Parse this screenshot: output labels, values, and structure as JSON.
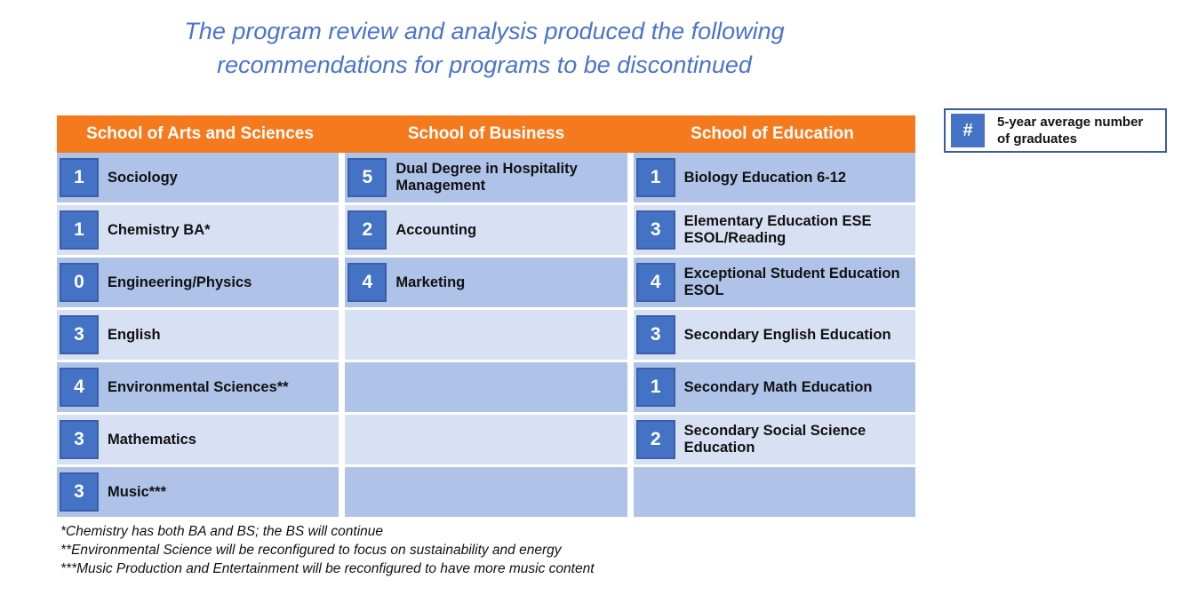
{
  "title": {
    "line1": "The program review and analysis produced the following",
    "line2": "recommendations for programs to be discontinued"
  },
  "legend": {
    "symbol": "#",
    "label": "5-year average number of graduates"
  },
  "table": {
    "columns": [
      {
        "header": "School of Arts and Sciences",
        "rows": [
          {
            "count": "1",
            "name": "Sociology"
          },
          {
            "count": "1",
            "name": "Chemistry BA*"
          },
          {
            "count": "0",
            "name": "Engineering/Physics"
          },
          {
            "count": "3",
            "name": "English"
          },
          {
            "count": "4",
            "name": "Environmental Sciences**"
          },
          {
            "count": "3",
            "name": "Mathematics"
          },
          {
            "count": "3",
            "name": "Music***"
          }
        ]
      },
      {
        "header": "School of Business",
        "rows": [
          {
            "count": "5",
            "name": "Dual Degree in Hospitality Management"
          },
          {
            "count": "2",
            "name": "Accounting"
          },
          {
            "count": "4",
            "name": "Marketing"
          }
        ]
      },
      {
        "header": "School of Education",
        "rows": [
          {
            "count": "1",
            "name": "Biology Education 6-12"
          },
          {
            "count": "3",
            "name": "Elementary Education ESE ESOL/Reading"
          },
          {
            "count": "4",
            "name": "Exceptional Student Education ESOL"
          },
          {
            "count": "3",
            "name": "Secondary English Education"
          },
          {
            "count": "1",
            "name": "Secondary Math Education"
          },
          {
            "count": "2",
            "name": "Secondary Social Science Education"
          }
        ]
      }
    ]
  },
  "footnotes": [
    "*Chemistry has both BA and BS; the BS will continue",
    "**Environmental Science will be reconfigured to focus on sustainability and energy",
    "***Music Production and Entertainment will be reconfigured to have more music content"
  ],
  "colors": {
    "header_bg": "#F5791D",
    "row_medium": "#AFC3E8",
    "row_light": "#D8E0F3",
    "badge_bg": "#4472C4",
    "badge_border": "#3A5FA8",
    "title_text": "#4A74CB",
    "legend_border": "#3A5BA9",
    "header_text": "#FFFFFF"
  }
}
